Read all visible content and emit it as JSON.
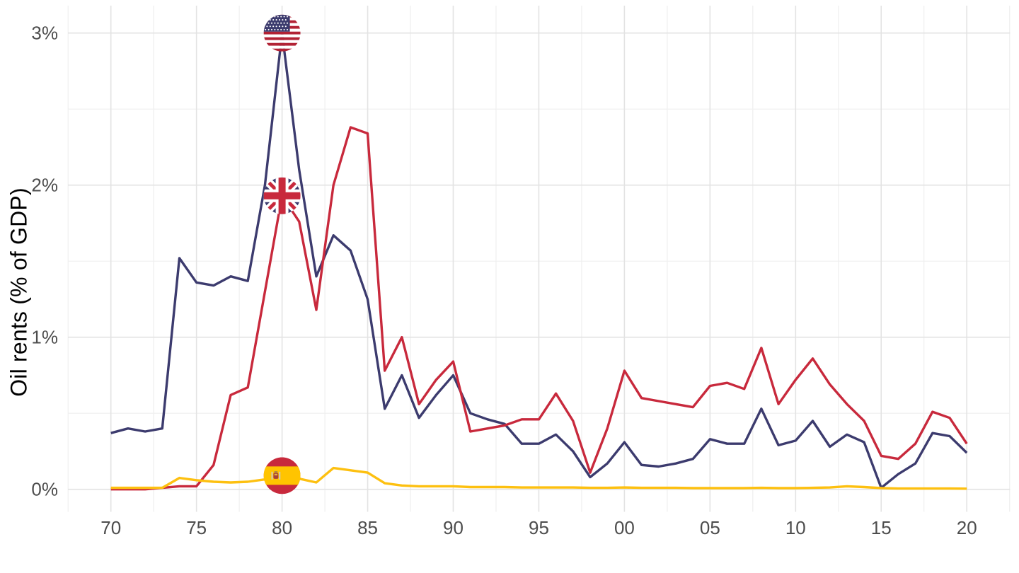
{
  "chart_data": {
    "type": "line",
    "title": "",
    "ylabel": "Oil rents (% of GDP)",
    "x": [
      1970,
      1971,
      1972,
      1973,
      1974,
      1975,
      1976,
      1977,
      1978,
      1979,
      1980,
      1981,
      1982,
      1983,
      1984,
      1985,
      1986,
      1987,
      1988,
      1989,
      1990,
      1991,
      1992,
      1993,
      1994,
      1995,
      1996,
      1997,
      1998,
      1999,
      2000,
      2001,
      2002,
      2003,
      2004,
      2005,
      2006,
      2007,
      2008,
      2009,
      2010,
      2011,
      2012,
      2013,
      2014,
      2015,
      2016,
      2017,
      2018,
      2019,
      2020
    ],
    "xlim": [
      1967.5,
      2022.5
    ],
    "ylim": [
      -0.15,
      3.18
    ],
    "grid": true,
    "x_ticks": [
      {
        "year": 1970,
        "label": "70"
      },
      {
        "year": 1975,
        "label": "75"
      },
      {
        "year": 1980,
        "label": "80"
      },
      {
        "year": 1985,
        "label": "85"
      },
      {
        "year": 1990,
        "label": "90"
      },
      {
        "year": 1995,
        "label": "95"
      },
      {
        "year": 2000,
        "label": "00"
      },
      {
        "year": 2005,
        "label": "05"
      },
      {
        "year": 2010,
        "label": "10"
      },
      {
        "year": 2015,
        "label": "15"
      },
      {
        "year": 2020,
        "label": "20"
      }
    ],
    "y_ticks": [
      {
        "value": 0,
        "label": "0%"
      },
      {
        "value": 1,
        "label": "1%"
      },
      {
        "value": 2,
        "label": "2%"
      },
      {
        "value": 3,
        "label": "3%"
      }
    ],
    "x_minor_gridlines": [
      1967.5,
      1972.5,
      1977.5,
      1982.5,
      1987.5,
      1992.5,
      1997.5,
      2002.5,
      2007.5,
      2012.5,
      2017.5,
      2022.5
    ],
    "y_minor_gridlines": [
      0.5,
      1.5,
      2.5
    ],
    "series": [
      {
        "name": "United States",
        "icon": "us-flag-icon",
        "color": "#3C3B6E",
        "marker_year": 1980,
        "marker_value": 3.0,
        "values": [
          0.37,
          0.4,
          0.38,
          0.4,
          1.52,
          1.36,
          1.34,
          1.4,
          1.37,
          2.0,
          3.0,
          2.1,
          1.4,
          1.67,
          1.57,
          1.25,
          0.53,
          0.75,
          0.47,
          0.62,
          0.75,
          0.5,
          0.46,
          0.43,
          0.3,
          0.3,
          0.36,
          0.25,
          0.08,
          0.17,
          0.31,
          0.16,
          0.15,
          0.17,
          0.2,
          0.33,
          0.3,
          0.3,
          0.53,
          0.29,
          0.32,
          0.45,
          0.28,
          0.36,
          0.31,
          0.01,
          0.1,
          0.17,
          0.37,
          0.35,
          0.24
        ]
      },
      {
        "name": "United Kingdom",
        "icon": "uk-flag-icon",
        "color": "#C8293C",
        "marker_year": 1980,
        "marker_value": 1.93,
        "values": [
          0.0,
          0.0,
          0.0,
          0.01,
          0.02,
          0.02,
          0.16,
          0.62,
          0.67,
          1.3,
          1.93,
          1.76,
          1.18,
          2.0,
          2.38,
          2.34,
          0.78,
          1.0,
          0.56,
          0.72,
          0.84,
          0.38,
          0.4,
          0.42,
          0.46,
          0.46,
          0.63,
          0.45,
          0.11,
          0.4,
          0.78,
          0.6,
          0.58,
          0.56,
          0.54,
          0.68,
          0.7,
          0.66,
          0.93,
          0.56,
          0.72,
          0.86,
          0.69,
          0.56,
          0.45,
          0.22,
          0.2,
          0.3,
          0.51,
          0.47,
          0.3
        ]
      },
      {
        "name": "Spain",
        "icon": "spain-flag-icon",
        "color": "#FDC010",
        "marker_year": 1980,
        "marker_value": 0.09,
        "values": [
          0.01,
          0.01,
          0.01,
          0.01,
          0.075,
          0.06,
          0.05,
          0.045,
          0.05,
          0.065,
          0.09,
          0.07,
          0.045,
          0.14,
          0.125,
          0.11,
          0.04,
          0.025,
          0.02,
          0.02,
          0.02,
          0.015,
          0.015,
          0.015,
          0.012,
          0.012,
          0.012,
          0.012,
          0.01,
          0.01,
          0.012,
          0.01,
          0.01,
          0.01,
          0.008,
          0.008,
          0.008,
          0.008,
          0.01,
          0.008,
          0.008,
          0.01,
          0.012,
          0.02,
          0.015,
          0.008,
          0.005,
          0.005,
          0.005,
          0.005,
          0.004
        ]
      }
    ]
  },
  "style": {
    "background": "#FFFFFF",
    "grid_major": "#E3E3E3",
    "grid_minor": "#EFEFEF",
    "axis_text": "#4D4D4D",
    "axis_title": "#000000",
    "flag_navy": "#3C3B6E",
    "flag_red": "#C8293C",
    "flag_yellow": "#FFC400"
  }
}
